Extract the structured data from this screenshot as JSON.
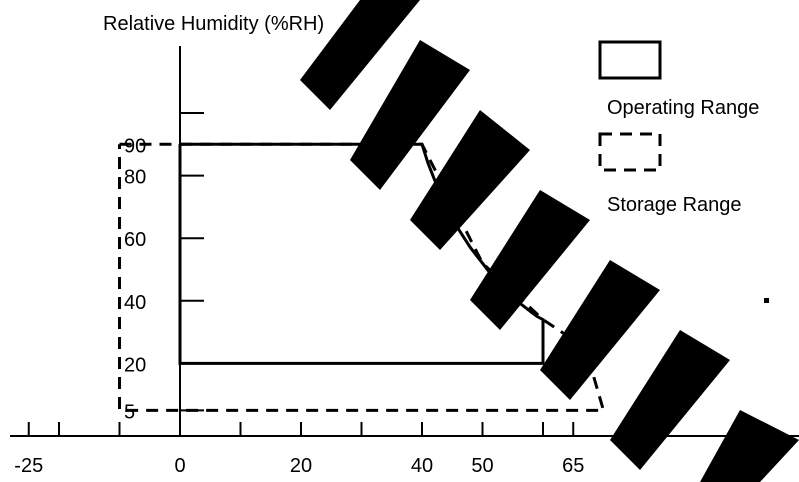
{
  "chart_data": {
    "type": "line",
    "title": "",
    "ylabel": "Relative Humidity (%RH)",
    "xlabel": "",
    "x_ticks": [
      -25,
      0,
      20,
      40,
      50,
      65
    ],
    "x_minor_ticks": [
      -20,
      -10,
      10,
      30,
      60
    ],
    "y_ticks": [
      5,
      20,
      40,
      60,
      80,
      90
    ],
    "y_minor_ticks": [
      100
    ],
    "xlim": [
      -30,
      70
    ],
    "ylim": [
      0,
      110
    ],
    "grid": false,
    "legend_position": "right",
    "series": [
      {
        "name": "Operating Range",
        "style": "solid",
        "x": [
          0,
          40,
          40.5,
          41,
          42,
          43,
          44,
          45,
          46,
          47,
          48,
          49,
          50,
          51,
          52,
          53,
          54,
          55,
          56,
          57,
          58,
          59,
          60,
          60,
          0,
          0
        ],
        "y": [
          90,
          90,
          87,
          84,
          79,
          74.5,
          70.5,
          66.5,
          63,
          60,
          57,
          54.5,
          52,
          49.5,
          47.5,
          45.5,
          43.5,
          41.5,
          39.5,
          38,
          36.5,
          35,
          34,
          20,
          20,
          90
        ]
      },
      {
        "name": "Storage Range",
        "style": "dashed",
        "x": [
          -10,
          40,
          50,
          60,
          67,
          70,
          70,
          -10,
          -10
        ],
        "y": [
          90,
          90,
          52,
          34,
          25,
          5,
          5,
          5,
          90
        ]
      }
    ],
    "legend": [
      {
        "label": "Operating Range",
        "style": "solid"
      },
      {
        "label": "Storage Range",
        "style": "dashed"
      }
    ]
  }
}
